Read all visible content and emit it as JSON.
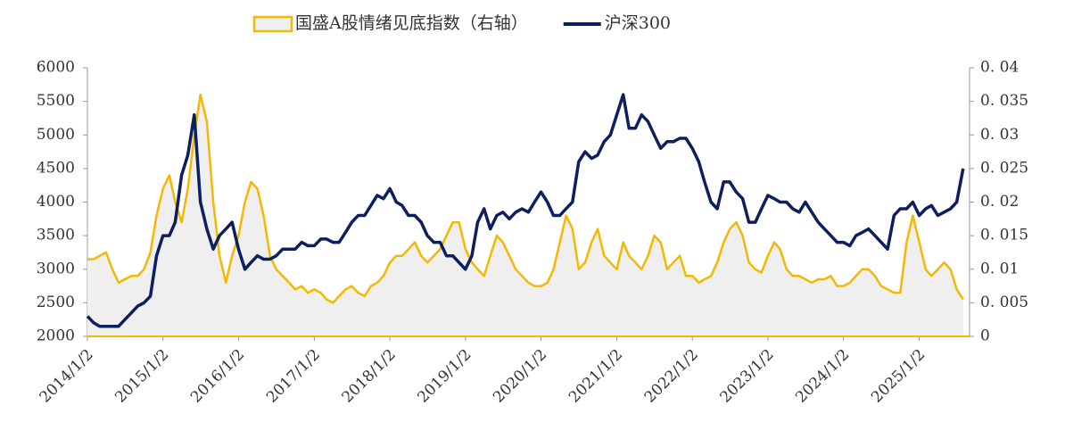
{
  "chart_data": {
    "type": "line",
    "x": [
      "2014/1/2",
      "2014/2/2",
      "2014/3/2",
      "2014/4/2",
      "2014/5/2",
      "2014/6/2",
      "2014/7/2",
      "2014/8/2",
      "2014/9/2",
      "2014/10/2",
      "2014/11/2",
      "2014/12/2",
      "2015/1/2",
      "2015/2/2",
      "2015/3/2",
      "2015/4/2",
      "2015/5/2",
      "2015/6/2",
      "2015/7/2",
      "2015/8/2",
      "2015/9/2",
      "2015/10/2",
      "2015/11/2",
      "2015/12/2",
      "2016/1/2",
      "2016/2/2",
      "2016/3/2",
      "2016/4/2",
      "2016/5/2",
      "2016/6/2",
      "2016/7/2",
      "2016/8/2",
      "2016/9/2",
      "2016/10/2",
      "2016/11/2",
      "2016/12/2",
      "2017/1/2",
      "2017/2/2",
      "2017/3/2",
      "2017/4/2",
      "2017/5/2",
      "2017/6/2",
      "2017/7/2",
      "2017/8/2",
      "2017/9/2",
      "2017/10/2",
      "2017/11/2",
      "2017/12/2",
      "2018/1/2",
      "2018/2/2",
      "2018/3/2",
      "2018/4/2",
      "2018/5/2",
      "2018/6/2",
      "2018/7/2",
      "2018/8/2",
      "2018/9/2",
      "2018/10/2",
      "2018/11/2",
      "2018/12/2",
      "2019/1/2",
      "2019/2/2",
      "2019/3/2",
      "2019/4/2",
      "2019/5/2",
      "2019/6/2",
      "2019/7/2",
      "2019/8/2",
      "2019/9/2",
      "2019/10/2",
      "2019/11/2",
      "2019/12/2",
      "2020/1/2",
      "2020/2/2",
      "2020/3/2",
      "2020/4/2",
      "2020/5/2",
      "2020/6/2",
      "2020/7/2",
      "2020/8/2",
      "2020/9/2",
      "2020/10/2",
      "2020/11/2",
      "2020/12/2",
      "2021/1/2",
      "2021/2/2",
      "2021/3/2",
      "2021/4/2",
      "2021/5/2",
      "2021/6/2",
      "2021/7/2",
      "2021/8/2",
      "2021/9/2",
      "2021/10/2",
      "2021/11/2",
      "2021/12/2",
      "2022/1/2",
      "2022/2/2",
      "2022/3/2",
      "2022/4/2",
      "2022/5/2",
      "2022/6/2",
      "2022/7/2",
      "2022/8/2",
      "2022/9/2",
      "2022/10/2",
      "2022/11/2",
      "2022/12/2",
      "2023/1/2",
      "2023/2/2",
      "2023/3/2",
      "2023/4/2",
      "2023/5/2",
      "2023/6/2",
      "2023/7/2",
      "2023/8/2",
      "2023/9/2",
      "2023/10/2",
      "2023/11/2",
      "2023/12/2",
      "2024/1/2",
      "2024/2/2",
      "2024/3/2",
      "2024/4/2",
      "2024/5/2",
      "2024/6/2",
      "2024/7/2",
      "2024/8/2",
      "2024/9/2",
      "2024/10/2",
      "2024/11/2",
      "2024/12/2",
      "2025/1/2",
      "2025/2/2",
      "2025/3/2",
      "2025/4/2",
      "2025/5/2",
      "2025/6/2",
      "2025/7/2",
      "2025/8/2"
    ],
    "series": [
      {
        "name": "国盛A股情绪见底指数（右轴）",
        "color": "#f5b800",
        "fill": "#efefef",
        "axis": "y2",
        "values": [
          0.0115,
          0.0115,
          0.012,
          0.0125,
          0.01,
          0.008,
          0.0085,
          0.009,
          0.009,
          0.01,
          0.0125,
          0.018,
          0.022,
          0.024,
          0.02,
          0.017,
          0.022,
          0.03,
          0.036,
          0.032,
          0.02,
          0.012,
          0.008,
          0.012,
          0.015,
          0.02,
          0.023,
          0.022,
          0.018,
          0.012,
          0.01,
          0.009,
          0.008,
          0.007,
          0.0075,
          0.0065,
          0.007,
          0.0065,
          0.0055,
          0.005,
          0.006,
          0.007,
          0.0075,
          0.0065,
          0.006,
          0.0075,
          0.008,
          0.009,
          0.011,
          0.012,
          0.012,
          0.013,
          0.014,
          0.012,
          0.011,
          0.012,
          0.013,
          0.015,
          0.017,
          0.017,
          0.013,
          0.011,
          0.01,
          0.009,
          0.012,
          0.015,
          0.014,
          0.012,
          0.01,
          0.009,
          0.008,
          0.0075,
          0.0075,
          0.008,
          0.01,
          0.014,
          0.018,
          0.016,
          0.01,
          0.011,
          0.014,
          0.016,
          0.012,
          0.011,
          0.01,
          0.014,
          0.012,
          0.011,
          0.01,
          0.012,
          0.015,
          0.014,
          0.01,
          0.011,
          0.012,
          0.009,
          0.009,
          0.008,
          0.0085,
          0.009,
          0.011,
          0.014,
          0.016,
          0.017,
          0.015,
          0.011,
          0.01,
          0.0095,
          0.012,
          0.014,
          0.013,
          0.01,
          0.009,
          0.009,
          0.0085,
          0.008,
          0.0085,
          0.0085,
          0.009,
          0.0075,
          0.0075,
          0.008,
          0.009,
          0.01,
          0.01,
          0.009,
          0.0075,
          0.007,
          0.0065,
          0.0065,
          0.014,
          0.018,
          0.014,
          0.01,
          0.009,
          0.01,
          0.011,
          0.01,
          0.007,
          0.0055
        ]
      },
      {
        "name": "沪深300",
        "color": "#0d1f5e",
        "values": [
          2300,
          2200,
          2150,
          2150,
          2150,
          2150,
          2250,
          2350,
          2450,
          2500,
          2600,
          3200,
          3500,
          3500,
          3700,
          4400,
          4700,
          5300,
          4000,
          3600,
          3300,
          3500,
          3600,
          3700,
          3300,
          3000,
          3100,
          3200,
          3150,
          3150,
          3200,
          3300,
          3300,
          3300,
          3400,
          3350,
          3350,
          3450,
          3450,
          3400,
          3400,
          3550,
          3700,
          3800,
          3800,
          3950,
          4100,
          4050,
          4200,
          4000,
          3950,
          3800,
          3800,
          3700,
          3500,
          3400,
          3400,
          3200,
          3200,
          3100,
          3000,
          3200,
          3700,
          3900,
          3600,
          3800,
          3850,
          3750,
          3850,
          3900,
          3850,
          4000,
          4150,
          4000,
          3800,
          3800,
          3900,
          4000,
          4600,
          4750,
          4650,
          4700,
          4900,
          5000,
          5300,
          5600,
          5100,
          5100,
          5300,
          5200,
          5000,
          4800,
          4900,
          4900,
          4950,
          4950,
          4800,
          4600,
          4300,
          4000,
          3900,
          4300,
          4300,
          4150,
          4050,
          3700,
          3700,
          3900,
          4100,
          4050,
          4000,
          4000,
          3900,
          3850,
          4000,
          3850,
          3700,
          3600,
          3500,
          3400,
          3400,
          3350,
          3500,
          3550,
          3600,
          3500,
          3400,
          3300,
          3800,
          3900,
          3900,
          4000,
          3800,
          3900,
          3950,
          3800,
          3850,
          3900,
          4000,
          4500
        ]
      }
    ],
    "xlim": [
      "2014/1/2",
      "2025/9/2"
    ],
    "xticks": [
      "2014/1/2",
      "2015/1/2",
      "2016/1/2",
      "2017/1/2",
      "2018/1/2",
      "2019/1/2",
      "2020/1/2",
      "2021/1/2",
      "2022/1/2",
      "2023/1/2",
      "2024/1/2",
      "2025/1/2"
    ],
    "ylim": [
      2000,
      6000
    ],
    "yticks": [
      2000,
      2500,
      3000,
      3500,
      4000,
      4500,
      5000,
      5500,
      6000
    ],
    "y2lim": [
      0,
      0.04
    ],
    "y2ticks": [
      0,
      {
        "value": 0.005,
        "label": "0. 005"
      },
      {
        "value": 0.01,
        "label": "0. 01"
      },
      {
        "value": 0.015,
        "label": "0. 015"
      },
      {
        "value": 0.02,
        "label": "0. 02"
      },
      {
        "value": 0.025,
        "label": "0. 025"
      },
      {
        "value": 0.03,
        "label": "0. 03"
      },
      {
        "value": 0.035,
        "label": "0. 035"
      },
      {
        "value": 0.04,
        "label": "0. 04"
      }
    ],
    "legend": "top"
  }
}
